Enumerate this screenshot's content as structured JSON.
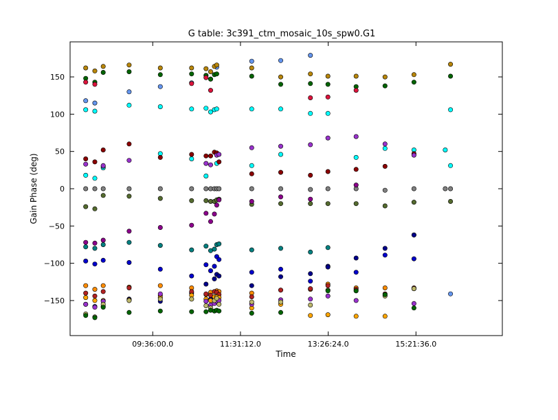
{
  "chart_data": {
    "type": "scatter",
    "title": "G table: 3c391_ctm_mosaic_10s_spw0.G1",
    "xlabel": "Time",
    "ylabel": "Gain Phase (deg)",
    "x_ticks": [
      "09:36:00.0",
      "11:31:12.0",
      "13:26:24.0",
      "15:21:36.0"
    ],
    "y_ticks": [
      -150,
      -100,
      -50,
      0,
      50,
      100,
      150
    ],
    "xlim": [
      "07:47:30",
      "17:15:00"
    ],
    "ylim": [
      -197,
      197
    ],
    "grid": false,
    "times": [
      "08:08",
      "08:20",
      "08:31",
      "09:05",
      "09:46",
      "10:27",
      "10:46",
      "10:52",
      "10:57",
      "11:00",
      "11:03",
      "11:46",
      "12:24",
      "13:03",
      "13:26",
      "14:03",
      "14:41",
      "15:19",
      "16:00",
      "16:07"
    ],
    "series": [
      {
        "color": "#808080",
        "values": [
          0,
          0,
          0,
          0,
          0,
          0,
          0,
          0,
          0,
          0,
          0,
          0,
          0,
          -1,
          0,
          0,
          -2,
          0,
          0,
          0
        ]
      },
      {
        "color": "#00ffff",
        "values": [
          106,
          104,
          null,
          112,
          110,
          107,
          108,
          103,
          106,
          107,
          null,
          107,
          107,
          101,
          101,
          42,
          54,
          52,
          52,
          106
        ]
      },
      {
        "color": "#00ffff",
        "values": [
          18,
          14,
          28,
          null,
          47,
          40,
          17,
          null,
          null,
          34,
          null,
          31,
          46,
          null,
          null,
          null,
          null,
          null,
          null,
          31
        ]
      },
      {
        "color": "#6495ed",
        "values": [
          118,
          115,
          30,
          130,
          137,
          142,
          152,
          147,
          null,
          163,
          null,
          171,
          172,
          179,
          null,
          null,
          null,
          null,
          null,
          -141
        ]
      },
      {
        "color": "#b8860b",
        "values": [
          162,
          158,
          164,
          166,
          162,
          162,
          161,
          157,
          164,
          166,
          null,
          162,
          150,
          154,
          151,
          151,
          150,
          153,
          null,
          167
        ]
      },
      {
        "color": "#006400",
        "values": [
          148,
          143,
          156,
          157,
          153,
          154,
          152,
          147,
          153,
          154,
          null,
          151,
          140,
          141,
          140,
          137,
          138,
          143,
          null,
          151
        ]
      },
      {
        "color": "#556b2f",
        "values": [
          -24,
          -27,
          -9,
          -10,
          -13,
          -16,
          -16,
          -17,
          -17,
          -15,
          -14,
          -21,
          -20,
          -20,
          -20,
          -20,
          -23,
          -18,
          null,
          -17
        ]
      },
      {
        "color": "#8b0000",
        "values": [
          40,
          36,
          52,
          60,
          42,
          46,
          44,
          44,
          49,
          48,
          36,
          20,
          22,
          18,
          23,
          26,
          30,
          47,
          null,
          null
        ]
      },
      {
        "color": "#dc143c",
        "values": [
          143,
          140,
          null,
          null,
          null,
          141,
          149,
          132,
          null,
          null,
          null,
          null,
          null,
          122,
          123,
          132,
          null,
          null,
          null,
          null
        ]
      },
      {
        "color": "#8b008b",
        "values": [
          null,
          null,
          null,
          -57,
          -52,
          -49,
          -33,
          -44,
          -34,
          -22,
          -15,
          -17,
          -11,
          -14,
          null,
          5,
          null,
          null,
          null,
          null
        ]
      },
      {
        "color": "#9932cc",
        "values": [
          33,
          null,
          31,
          38,
          null,
          null,
          34,
          32,
          null,
          45,
          46,
          55,
          57,
          59,
          68,
          70,
          60,
          45,
          null,
          null
        ]
      },
      {
        "color": "#8b008b",
        "values": [
          -72,
          -73,
          -69,
          null,
          null,
          null,
          null,
          null,
          null,
          null,
          null,
          null,
          null,
          null,
          null,
          null,
          null,
          null,
          null,
          null
        ]
      },
      {
        "color": "#008080",
        "values": [
          -78,
          -80,
          -75,
          -72,
          -76,
          -82,
          -77,
          -83,
          -81,
          -75,
          -74,
          -82,
          -80,
          -85,
          -79,
          null,
          null,
          -62,
          null,
          null
        ]
      },
      {
        "color": "#0000cd",
        "values": [
          -97,
          -101,
          -96,
          -99,
          -108,
          -117,
          -102,
          -110,
          -104,
          -91,
          -95,
          -112,
          -108,
          -124,
          -104,
          -112,
          -89,
          -94,
          null,
          null
        ]
      },
      {
        "color": "#00008b",
        "values": [
          -155,
          -158,
          -158,
          -148,
          -151,
          -140,
          -128,
          -148,
          -121,
          -115,
          -117,
          -130,
          -118,
          -114,
          -105,
          -93,
          -80,
          -62,
          null,
          null
        ]
      },
      {
        "color": "#ff8c00",
        "values": [
          -130,
          -135,
          -130,
          -132,
          -130,
          -133,
          -142,
          -139,
          -145,
          -137,
          -138,
          -140,
          -136,
          -135,
          -128,
          -133,
          -133,
          -134,
          null,
          null
        ]
      },
      {
        "color": "#b22222",
        "values": [
          -140,
          -144,
          -138,
          -133,
          -143,
          -138,
          -141,
          -143,
          -138,
          -139,
          -142,
          -145,
          -136,
          -134,
          -130,
          -135,
          -141,
          -133,
          null,
          null
        ]
      },
      {
        "color": "#ffa500",
        "values": [
          -146,
          -150,
          -150,
          -149,
          -146,
          -143,
          -148,
          -150,
          -145,
          -145,
          -146,
          -160,
          -155,
          -170,
          -169,
          -171,
          -171,
          -134,
          null,
          null
        ]
      },
      {
        "color": "#9932cc",
        "values": [
          -155,
          -159,
          -151,
          -150,
          -141,
          -148,
          -151,
          -156,
          -154,
          -151,
          -150,
          -155,
          -149,
          -148,
          -144,
          -150,
          -143,
          -154,
          null,
          null
        ]
      },
      {
        "color": "#bdb76b",
        "values": [
          -168,
          -172,
          -155,
          -150,
          -148,
          -148,
          -157,
          -160,
          -150,
          -147,
          -155,
          -152,
          -152,
          -156,
          -136,
          -137,
          -144,
          -134,
          null,
          null
        ]
      },
      {
        "color": "#006400",
        "values": [
          -170,
          -173,
          -159,
          -166,
          -164,
          -165,
          -165,
          -163,
          -164,
          -163,
          -164,
          -167,
          -166,
          null,
          -137,
          -137,
          -142,
          -160,
          null,
          null
        ]
      }
    ]
  }
}
